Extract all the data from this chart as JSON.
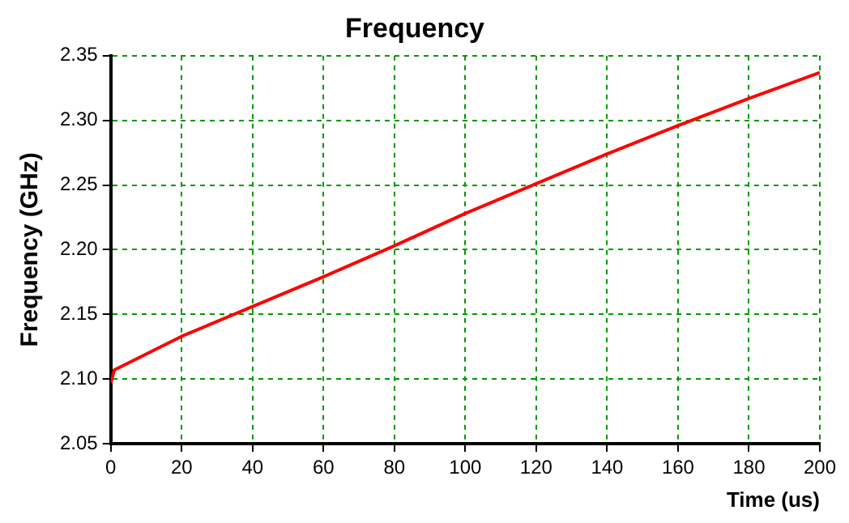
{
  "chart_data": {
    "type": "line",
    "title": "Frequency",
    "xlabel": "Time (us)",
    "ylabel": "Frequency (GHz)",
    "x": [
      0,
      1,
      20,
      40,
      60,
      80,
      100,
      120,
      140,
      160,
      180,
      200
    ],
    "series": [
      {
        "color": "#ff0000",
        "values": [
          2.097,
          2.107,
          2.133,
          2.156,
          2.179,
          2.203,
          2.228,
          2.251,
          2.274,
          2.296,
          2.317,
          2.337
        ]
      }
    ],
    "xlim": [
      0,
      200
    ],
    "xticks": [
      0,
      20,
      40,
      60,
      80,
      100,
      120,
      140,
      160,
      180,
      200
    ],
    "ylim": [
      2.05,
      2.35
    ],
    "yticks": [
      2.05,
      {
        "value": 2.1,
        "label": "2.10"
      },
      2.15,
      {
        "value": 2.2,
        "label": "2.20"
      },
      2.25,
      {
        "value": 2.3,
        "label": "2.30"
      },
      2.35
    ],
    "grid": true,
    "legend": false,
    "marker": "none",
    "line_style": "solid"
  }
}
